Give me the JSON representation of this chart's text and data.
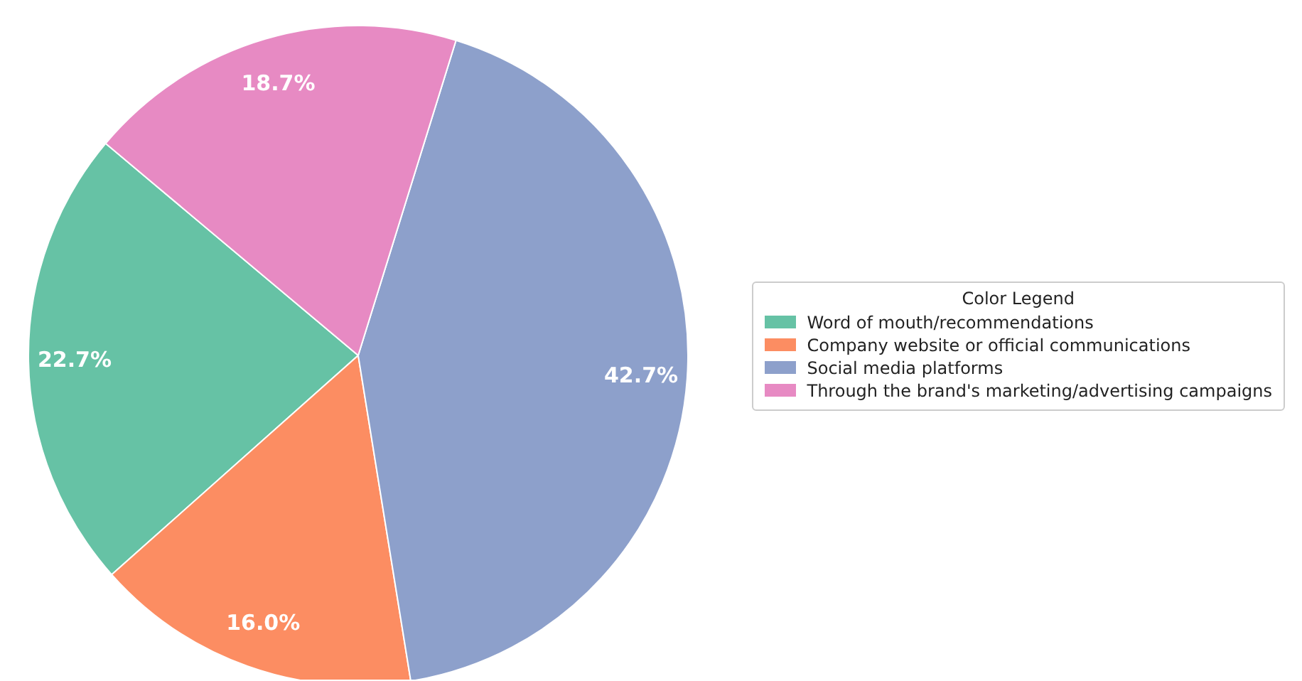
{
  "chart_data": {
    "type": "pie",
    "legend_title": "Color Legend",
    "legend": "right",
    "value_labels": [
      "22.7%",
      "16.0%",
      "42.7%",
      "18.7%"
    ],
    "categories": [
      "Word of mouth/recommendations",
      "Company website or official communications",
      "Social media platforms",
      "Through the brand's marketing/advertising campaigns"
    ],
    "values": [
      22.7,
      16.0,
      42.7,
      18.7
    ],
    "colors": [
      "#66c2a5",
      "#fc8d62",
      "#8da0cb",
      "#e78ac3"
    ]
  }
}
